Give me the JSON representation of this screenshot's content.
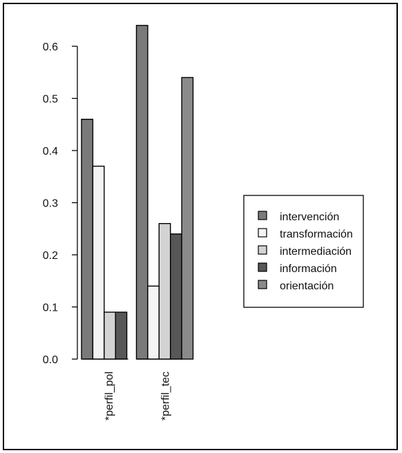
{
  "chart_data": {
    "type": "bar",
    "categories": [
      "*perfil_pol",
      "*perfil_tec"
    ],
    "series": [
      {
        "name": "intervención",
        "values": [
          0.46,
          0.64
        ],
        "color": "#7a7a7a"
      },
      {
        "name": "transformación",
        "values": [
          0.37,
          0.14
        ],
        "color": "#f4f4f4"
      },
      {
        "name": "intermediación",
        "values": [
          0.09,
          0.26
        ],
        "color": "#d3d3d3"
      },
      {
        "name": "información",
        "values": [
          0.09,
          0.24
        ],
        "color": "#575757"
      },
      {
        "name": "orientación",
        "values": [
          0.0,
          0.54
        ],
        "color": "#8a8a8a"
      }
    ],
    "yticks": [
      "0.0",
      "0.1",
      "0.2",
      "0.3",
      "0.4",
      "0.5",
      "0.6"
    ],
    "ylim": [
      0,
      0.64
    ],
    "legend_position": "right",
    "grid": false
  }
}
